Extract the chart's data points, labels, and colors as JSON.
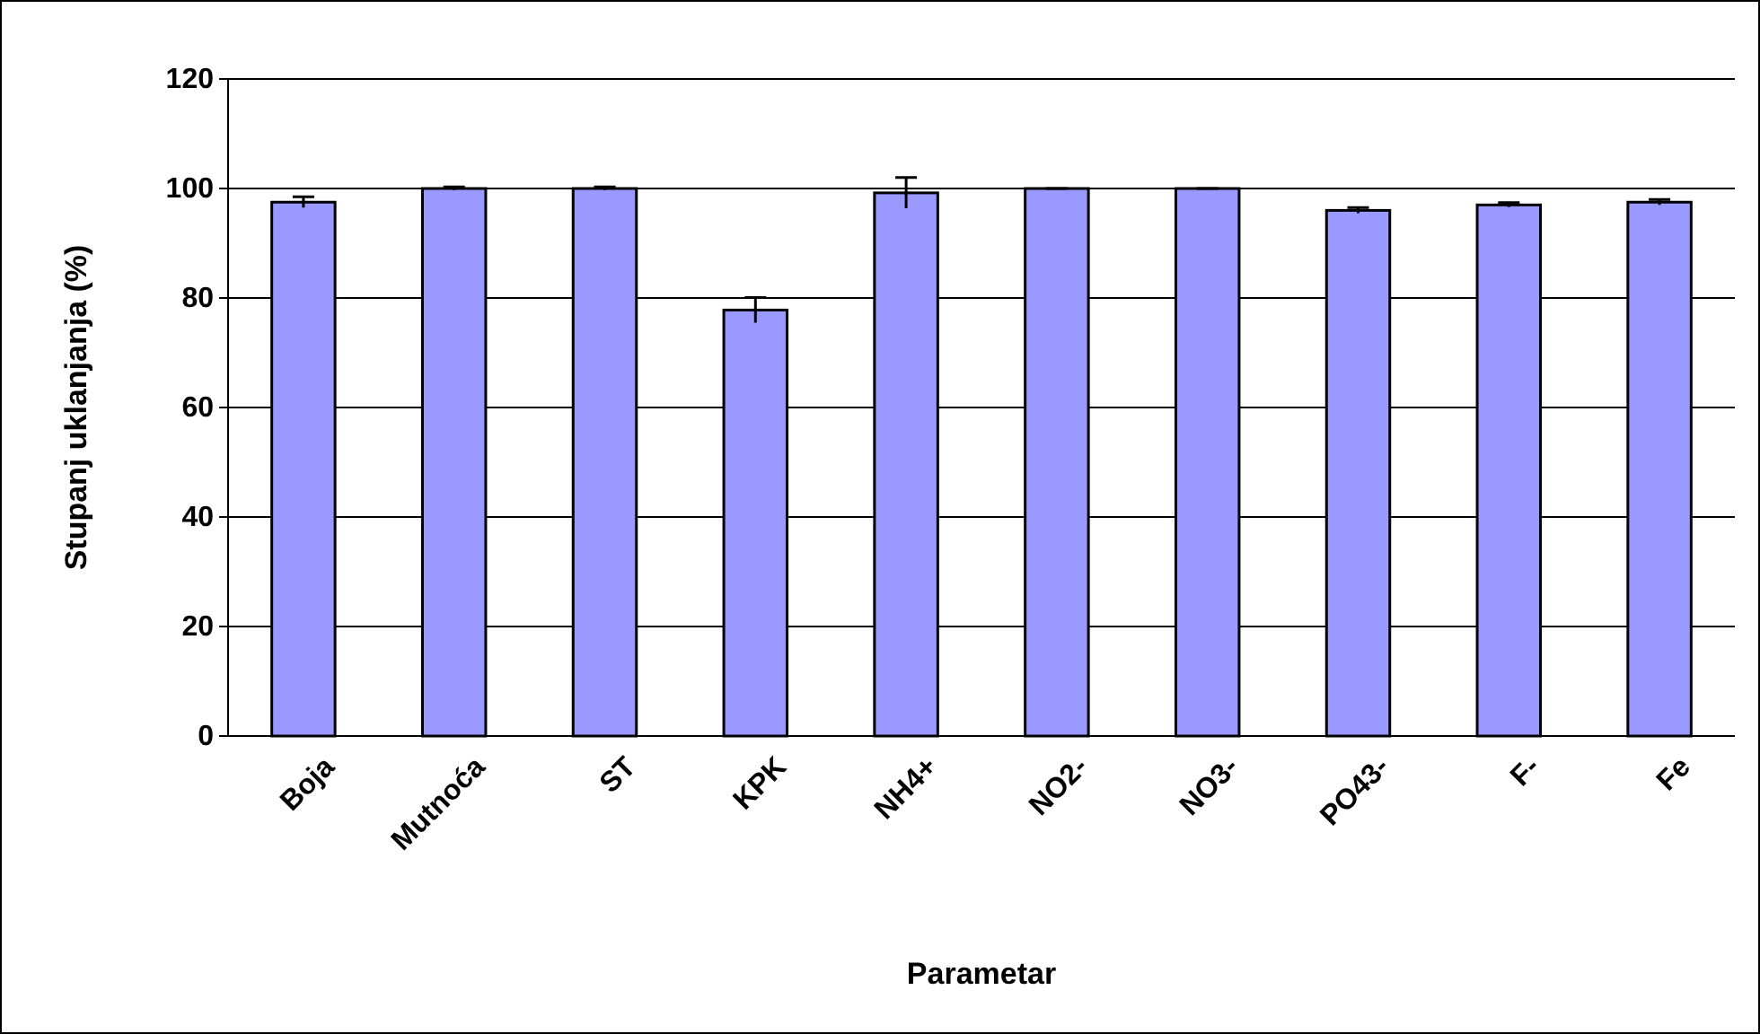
{
  "chart_data": {
    "type": "bar",
    "xlabel": "Parametar",
    "ylabel": "Stupanj uklanjanja (%)",
    "categories": [
      "Boja",
      "Mutnoća",
      "ST",
      "KPK",
      "NH4+",
      "NO2-",
      "NO3-",
      "PO43-",
      "F-",
      "Fe"
    ],
    "values": [
      97.5,
      100,
      100,
      77.8,
      99.2,
      100,
      100,
      96.0,
      97.0,
      97.5
    ],
    "errors": [
      1.0,
      0.3,
      0.3,
      2.3,
      2.8,
      0,
      0,
      0.5,
      0.4,
      0.5
    ],
    "color": "#9999ff",
    "ylim": [
      0,
      120
    ],
    "yticks": [
      0,
      20,
      40,
      60,
      80,
      100,
      120
    ],
    "grid": "y"
  }
}
